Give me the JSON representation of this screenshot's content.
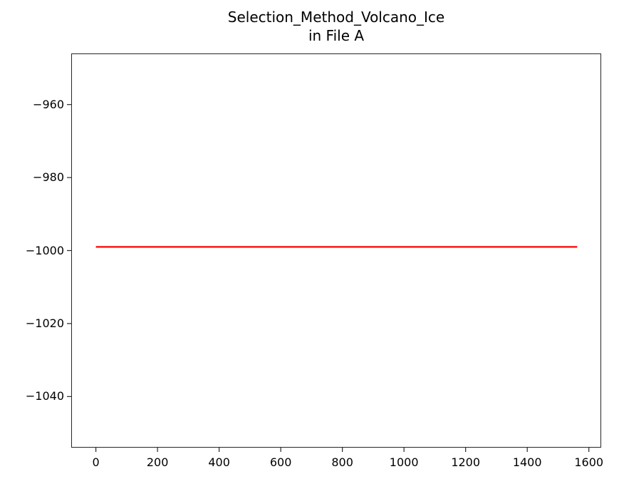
{
  "chart_data": {
    "type": "line",
    "title": "Selection_Method_Volcano_Ice\nin File A",
    "title_lines": [
      "Selection_Method_Volcano_Ice",
      "in File A"
    ],
    "xlabel": "",
    "ylabel": "",
    "xlim": [
      -80,
      1640
    ],
    "ylim": [
      -1054,
      -946
    ],
    "x_ticks": [
      0,
      200,
      400,
      600,
      800,
      1000,
      1200,
      1400,
      1600
    ],
    "x_tick_labels": [
      "0",
      "200",
      "400",
      "600",
      "800",
      "1000",
      "1200",
      "1400",
      "1600"
    ],
    "y_ticks": [
      -960,
      -980,
      -1000,
      -1020,
      -1040
    ],
    "y_tick_labels": [
      "−960",
      "−980",
      "−1000",
      "−1020",
      "−1040"
    ],
    "grid": false,
    "legend": null,
    "series": [
      {
        "name": "series",
        "color": "#ff0000",
        "x": [
          0,
          1562
        ],
        "y": [
          -999,
          -999
        ]
      }
    ]
  }
}
